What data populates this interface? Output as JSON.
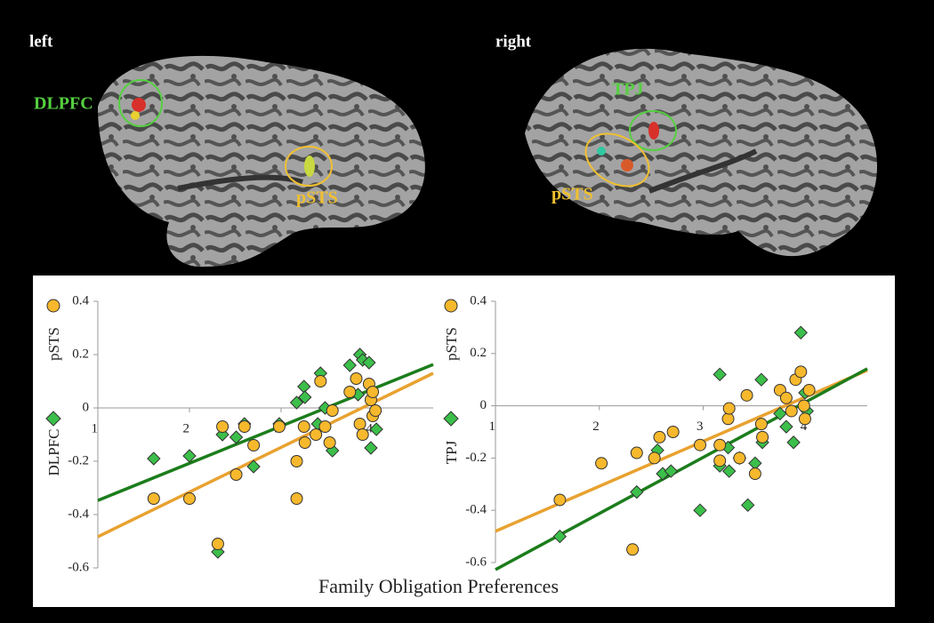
{
  "figure": {
    "brains": [
      {
        "side": "left",
        "regions": [
          {
            "label": "DLPFC",
            "color": "#55d040"
          },
          {
            "label": "pSTS",
            "color": "#f0c030"
          }
        ]
      },
      {
        "side": "right",
        "regions": [
          {
            "label": "TPJ",
            "color": "#55d040"
          },
          {
            "label": "pSTS",
            "color": "#f0c030"
          }
        ]
      }
    ],
    "xlabel": "Family Obligation Preferences"
  },
  "chart_data": [
    {
      "type": "scatter",
      "xlim": [
        1,
        4.66
      ],
      "ylim": [
        -0.6,
        0.4
      ],
      "xticks": [
        1,
        2,
        3,
        4
      ],
      "yticks": [
        0.4,
        0.2,
        0,
        -0.2,
        -0.4,
        -0.6
      ],
      "series": [
        {
          "name": "pSTS",
          "marker": "circle",
          "color": "#f6b82c",
          "x": [
            1.61,
            2.0,
            2.31,
            2.36,
            2.51,
            2.6,
            2.7,
            2.98,
            3.17,
            3.17,
            3.25,
            3.26,
            3.38,
            3.43,
            3.48,
            3.53,
            3.56,
            3.75,
            3.82,
            3.86,
            3.89,
            3.96,
            3.98,
            4.0,
            4.0,
            4.03
          ],
          "values": [
            -0.34,
            -0.34,
            -0.51,
            -0.07,
            -0.25,
            -0.07,
            -0.14,
            -0.07,
            -0.2,
            -0.34,
            -0.07,
            -0.13,
            -0.1,
            0.1,
            -0.07,
            -0.13,
            -0.01,
            0.06,
            0.11,
            -0.06,
            -0.1,
            0.09,
            0.03,
            0.06,
            -0.03,
            -0.01
          ]
        },
        {
          "name": "DLPFC",
          "marker": "diamond",
          "color": "#3cbf4a",
          "x": [
            1.61,
            2.0,
            2.31,
            2.36,
            2.51,
            2.6,
            2.7,
            2.98,
            3.17,
            3.25,
            3.26,
            3.43,
            3.48,
            3.56,
            3.75,
            3.86,
            3.89,
            3.96,
            3.98,
            4.04,
            3.84,
            3.4
          ],
          "values": [
            -0.19,
            -0.18,
            -0.54,
            -0.1,
            -0.11,
            -0.06,
            -0.22,
            -0.06,
            0.02,
            0.08,
            0.04,
            0.13,
            0.0,
            -0.16,
            0.16,
            0.2,
            0.18,
            0.17,
            -0.15,
            -0.08,
            0.05,
            -0.06
          ]
        }
      ],
      "fits": [
        {
          "color": "#1c7d1c",
          "x": [
            1,
            4.66
          ],
          "values": [
            -0.347,
            0.163
          ]
        },
        {
          "color": "#e8a230",
          "x": [
            1,
            4.66
          ],
          "values": [
            -0.483,
            0.13
          ]
        }
      ]
    },
    {
      "type": "scatter",
      "xlim": [
        1,
        4.58
      ],
      "ylim": [
        -0.6,
        0.4
      ],
      "xticks": [
        1,
        2,
        3,
        4
      ],
      "yticks": [
        0.4,
        0.2,
        0,
        -0.2,
        -0.4,
        -0.6
      ],
      "series": [
        {
          "name": "pSTS",
          "marker": "circle",
          "color": "#f6b82c",
          "x": [
            1.62,
            2.02,
            2.32,
            2.36,
            2.53,
            2.58,
            2.71,
            2.97,
            3.16,
            3.16,
            3.24,
            3.25,
            3.35,
            3.42,
            3.5,
            3.57,
            3.56,
            3.74,
            3.8,
            3.85,
            3.89,
            3.94,
            3.98,
            4.02,
            3.97
          ],
          "values": [
            -0.36,
            -0.22,
            -0.55,
            -0.18,
            -0.2,
            -0.12,
            -0.1,
            -0.15,
            -0.21,
            -0.15,
            -0.05,
            -0.01,
            -0.2,
            0.04,
            -0.26,
            -0.12,
            -0.07,
            0.06,
            0.03,
            -0.02,
            0.1,
            0.13,
            -0.05,
            0.06,
            0.0
          ]
        },
        {
          "name": "TPJ",
          "marker": "diamond",
          "color": "#3cbf4a",
          "x": [
            1.62,
            2.36,
            2.56,
            2.61,
            2.69,
            2.97,
            3.16,
            3.16,
            3.24,
            3.25,
            3.35,
            3.43,
            3.5,
            3.56,
            3.57,
            3.74,
            3.8,
            3.87,
            3.94,
            3.98,
            4.0
          ],
          "values": [
            -0.5,
            -0.33,
            -0.17,
            -0.26,
            -0.25,
            -0.4,
            0.12,
            -0.23,
            -0.16,
            -0.25,
            -0.2,
            -0.38,
            -0.22,
            0.1,
            -0.14,
            -0.03,
            -0.08,
            -0.14,
            0.28,
            0.05,
            -0.02
          ]
        }
      ],
      "fits": [
        {
          "color": "#e8a230",
          "x": [
            1,
            4.58
          ],
          "values": [
            -0.48,
            0.136
          ]
        },
        {
          "color": "#1c7d1c",
          "x": [
            1,
            4.58
          ],
          "values": [
            -0.627,
            0.142
          ]
        }
      ]
    }
  ]
}
